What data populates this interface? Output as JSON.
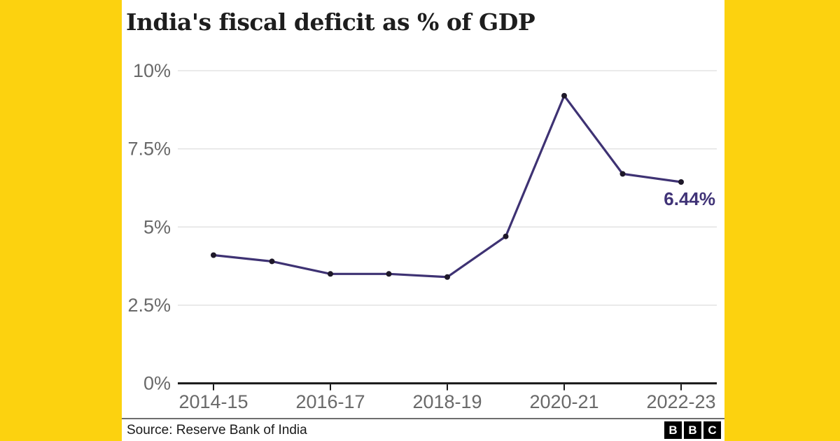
{
  "chart_data": {
    "type": "line",
    "title": "India's fiscal deficit as % of GDP",
    "x": [
      "2014-15",
      "2015-16",
      "2016-17",
      "2017-18",
      "2018-19",
      "2019-20",
      "2020-21",
      "2021-22",
      "2022-23"
    ],
    "values": [
      4.1,
      3.9,
      3.5,
      3.5,
      3.4,
      4.7,
      9.2,
      6.7,
      6.44
    ],
    "x_tick_labels": [
      "2014-15",
      "2016-17",
      "2018-19",
      "2020-21",
      "2022-23"
    ],
    "y_ticks": [
      0,
      2.5,
      5,
      7.5,
      10
    ],
    "y_tick_labels": [
      "0%",
      "2.5%",
      "5%",
      "7.5%",
      "10%"
    ],
    "ylim": [
      0,
      10
    ],
    "grid": true,
    "legend_position": "none",
    "annotation": {
      "text": "6.44%",
      "x": "2022-23",
      "value": 6.44
    }
  },
  "colors": {
    "background": "#fcd20f",
    "card": "#ffffff",
    "line": "#3e3273",
    "point": "#1e1829",
    "annotation": "#403377",
    "axis_labels": "#696969",
    "gridline": "#e3e3e3",
    "axis_line": "#1a1a1a",
    "title_text": "#1d1d1d",
    "divider": "#6e6e6e",
    "logo_block": "#000000",
    "logo_letter": "#ffffff"
  },
  "footer": {
    "source": "Source: Reserve Bank of India",
    "logo": {
      "letters": [
        "B",
        "B",
        "C"
      ]
    }
  }
}
